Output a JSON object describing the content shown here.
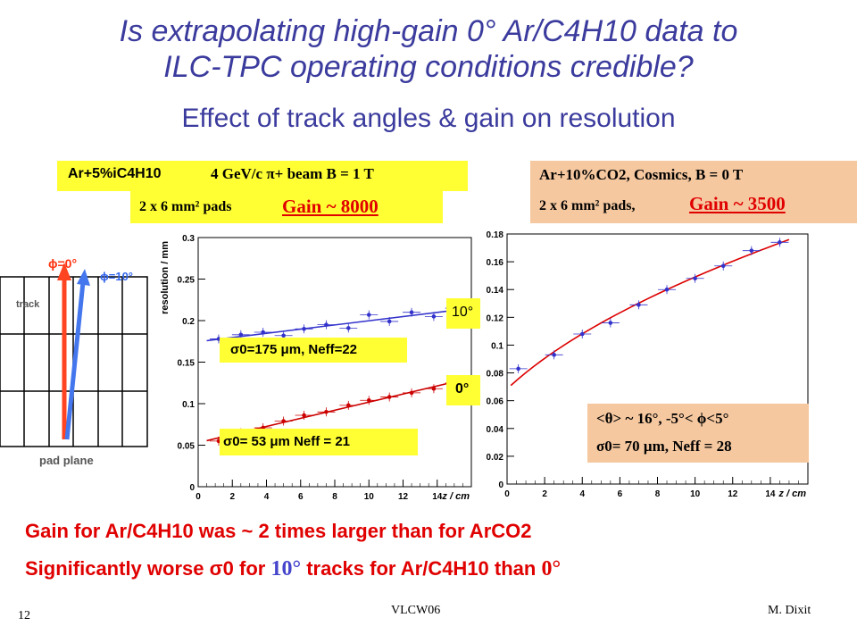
{
  "slide": {
    "title_line1": "Is extrapolating high-gain 0° Ar/C4H10 data to",
    "title_line2": "ILC-TPC operating conditions credible?",
    "subtitle": "Effect of track angles & gain on resolution",
    "left_box1": "Ar+5%iC4H10",
    "left_box1_beam": "4 GeV/c π+ beam B = 1 T",
    "left_box2_pads": "2 x 6 mm² pads",
    "left_gain": "Gain ~ 8000",
    "right_box1": "Ar+10%CO2, Cosmics, B = 0 T",
    "right_box2_pads": "2 x 6 mm² pads,",
    "right_gain": "Gain ~ 3500",
    "bottom_line1": "Gain for Ar/C4H10 was ~ 2 times larger than for ArCO2",
    "bottom_line2_a": "Significantly worse σ0 for",
    "bottom_line2_b": "10°",
    "bottom_line2_c": "tracks for Ar/C4H10 than",
    "bottom_line2_d": "0°",
    "footer_page": "12",
    "footer_center": "VLCW06",
    "footer_right": "M. Dixit",
    "colors": {
      "title": "#3b3b9e",
      "red": "#e00000",
      "yellow": "#ffff33",
      "orange": "#f5c8a0"
    }
  },
  "diagram": {
    "phi0": "ϕ=0°",
    "phi10": "ϕ=10°",
    "track": "track",
    "pad_plane": "pad plane"
  },
  "chart_data": [
    {
      "type": "scatter",
      "xlabel": "z / cm",
      "ylabel": "resolution / mm",
      "xlim": [
        0,
        16
      ],
      "ylim": [
        0,
        0.3
      ],
      "xticks": [
        "0",
        "2",
        "4",
        "6",
        "8",
        "10",
        "12",
        "14"
      ],
      "yticks": [
        "0",
        "0.05",
        "0.1",
        "0.15",
        "0.2",
        "0.25",
        "0.3"
      ],
      "series": [
        {
          "name": "10°",
          "color": "#3333cc",
          "x": [
            1.2,
            2.5,
            3.8,
            5.0,
            6.2,
            7.5,
            8.8,
            10.0,
            11.2,
            12.5,
            13.8,
            15.0
          ],
          "values": [
            0.178,
            0.183,
            0.186,
            0.182,
            0.19,
            0.195,
            0.191,
            0.207,
            0.199,
            0.21,
            0.205,
            0.215
          ]
        },
        {
          "name": "0°",
          "color": "#cc0000",
          "x": [
            1.2,
            2.5,
            3.8,
            5.0,
            6.2,
            7.5,
            8.8,
            10.0,
            11.2,
            12.5,
            13.8,
            15.0
          ],
          "values": [
            0.055,
            0.065,
            0.071,
            0.079,
            0.086,
            0.09,
            0.098,
            0.104,
            0.108,
            0.113,
            0.118,
            0.125
          ]
        }
      ],
      "annotations": {
        "label_10": "10°",
        "label_0": "0°",
        "fit_10": "σ0=175 μm, Neff=22",
        "fit_0": "σ0= 53 μm Neff = 21"
      }
    },
    {
      "type": "scatter",
      "xlabel": "z / cm",
      "ylabel": "resolution / mm",
      "xlim": [
        0,
        16
      ],
      "ylim": [
        0,
        0.18
      ],
      "xticks": [
        "0",
        "2",
        "4",
        "6",
        "8",
        "10",
        "12",
        "14"
      ],
      "yticks": [
        "0",
        "0.02",
        "0.04",
        "0.06",
        "0.08",
        "0.1",
        "0.12",
        "0.14",
        "0.16",
        "0.18"
      ],
      "series": [
        {
          "color": "#3333cc",
          "x": [
            0.6,
            2.5,
            4.0,
            5.5,
            7.0,
            8.5,
            10.0,
            11.5,
            13.0,
            14.5
          ],
          "values": [
            0.083,
            0.093,
            0.108,
            0.116,
            0.129,
            0.14,
            0.148,
            0.157,
            0.168,
            0.174
          ]
        }
      ],
      "annotations": {
        "box_line1": "<θ> ~ 16°, -5°< ϕ<5°",
        "box_line2": "σ0= 70 μm, Neff = 28"
      }
    }
  ]
}
